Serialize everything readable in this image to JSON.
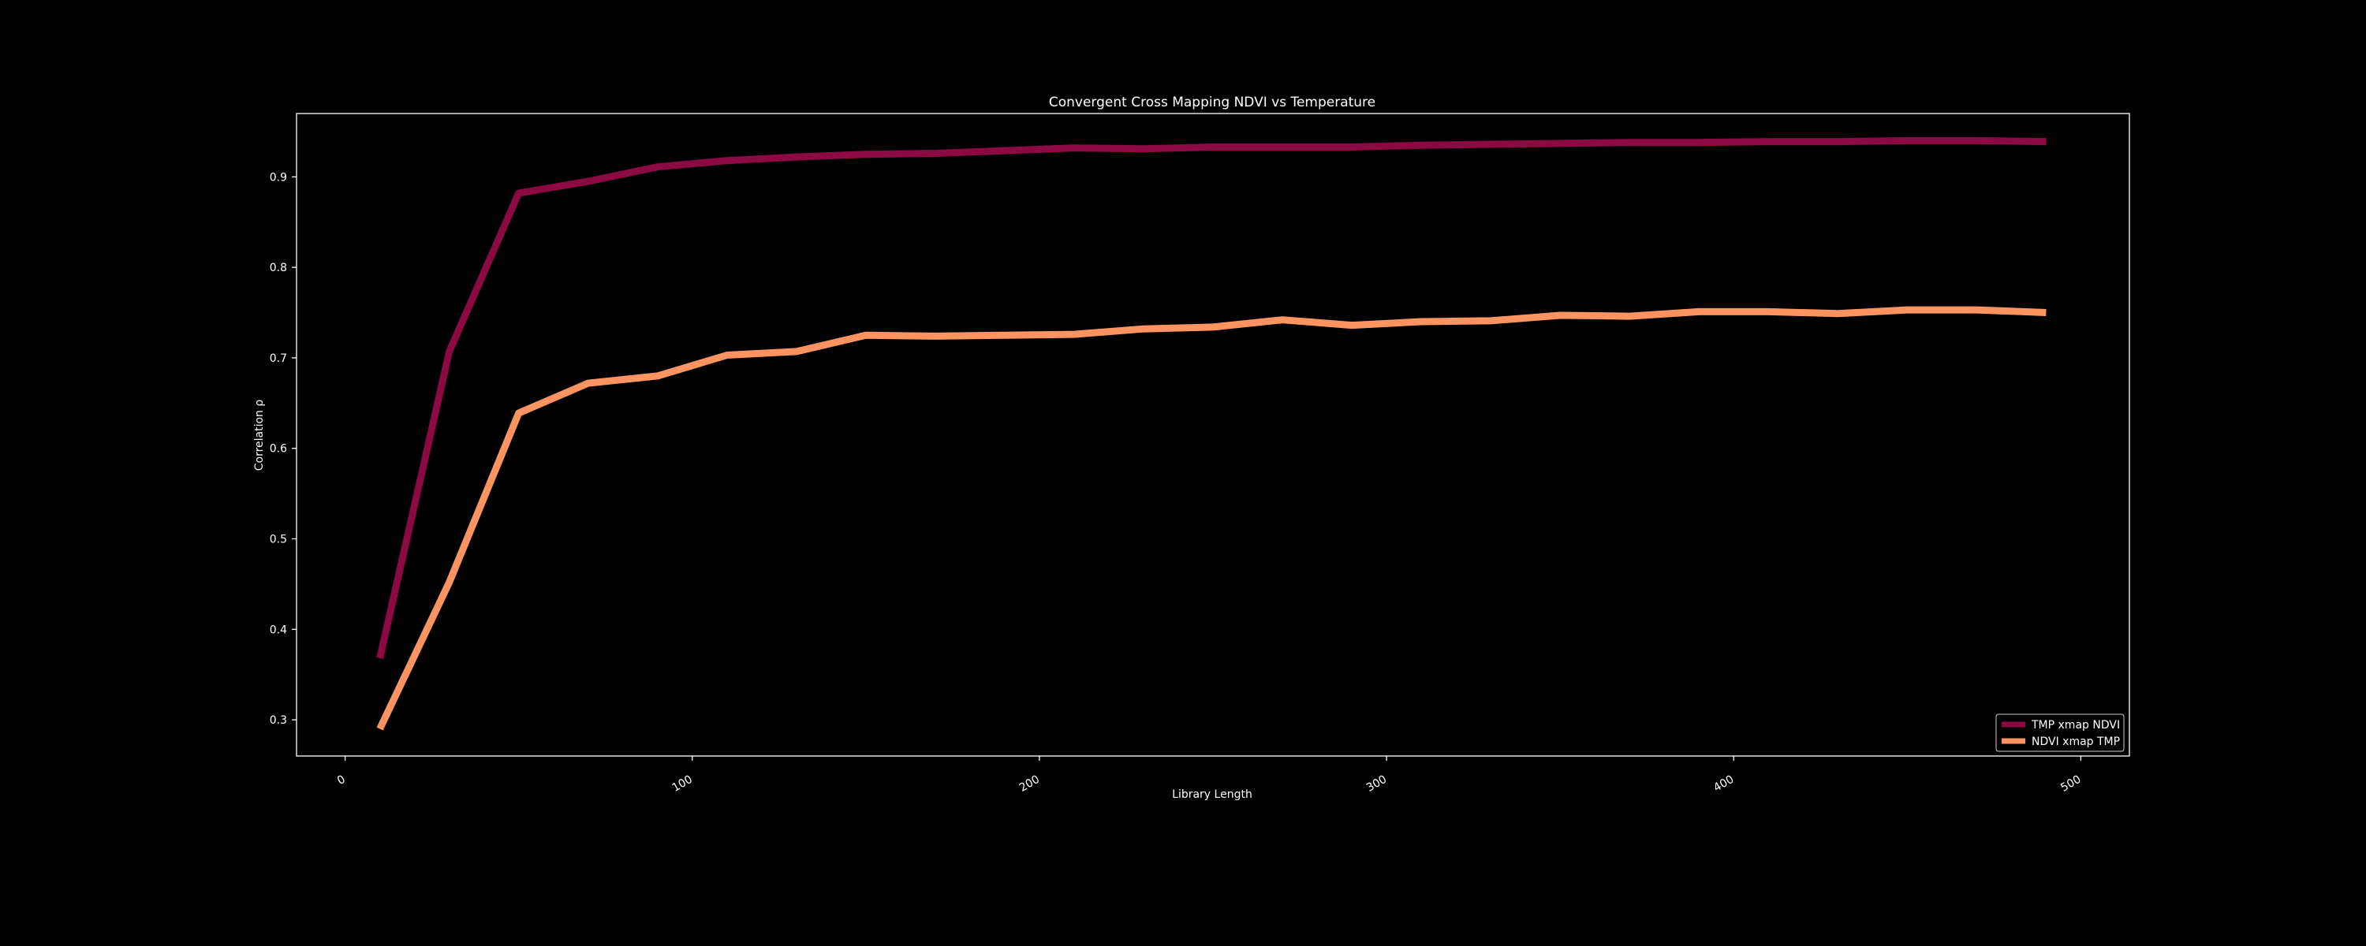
{
  "chart_data": {
    "type": "line",
    "title": "Convergent Cross Mapping NDVI vs Temperature",
    "xlabel": "Library Length",
    "ylabel": "Correlation ρ",
    "xlim": [
      -14,
      514
    ],
    "ylim": [
      0.26,
      0.97
    ],
    "xticks": [
      0,
      100,
      200,
      300,
      400,
      500
    ],
    "yticks": [
      0.3,
      0.4,
      0.5,
      0.6,
      0.7,
      0.8,
      0.9
    ],
    "ytick_labels": [
      "0.3",
      "0.4",
      "0.5",
      "0.6",
      "0.7",
      "0.8",
      "0.9"
    ],
    "grid": false,
    "legend_position": "bottom-right",
    "x": [
      10,
      30,
      50,
      70,
      90,
      110,
      130,
      150,
      170,
      190,
      210,
      230,
      250,
      270,
      290,
      310,
      330,
      350,
      370,
      390,
      410,
      430,
      450,
      470,
      490
    ],
    "series": [
      {
        "name": "TMP xmap NDVI",
        "color": "#8b0a41",
        "values": [
          0.368,
          0.707,
          0.882,
          0.895,
          0.911,
          0.918,
          0.922,
          0.925,
          0.926,
          0.929,
          0.932,
          0.931,
          0.933,
          0.933,
          0.933,
          0.935,
          0.936,
          0.937,
          0.938,
          0.938,
          0.939,
          0.939,
          0.94,
          0.94,
          0.939
        ]
      },
      {
        "name": "NDVI xmap TMP",
        "color": "#fb9460",
        "values": [
          0.29,
          0.452,
          0.639,
          0.672,
          0.68,
          0.703,
          0.707,
          0.725,
          0.724,
          0.725,
          0.726,
          0.732,
          0.734,
          0.742,
          0.736,
          0.74,
          0.741,
          0.747,
          0.746,
          0.751,
          0.751,
          0.749,
          0.753,
          0.753,
          0.75
        ]
      }
    ]
  }
}
